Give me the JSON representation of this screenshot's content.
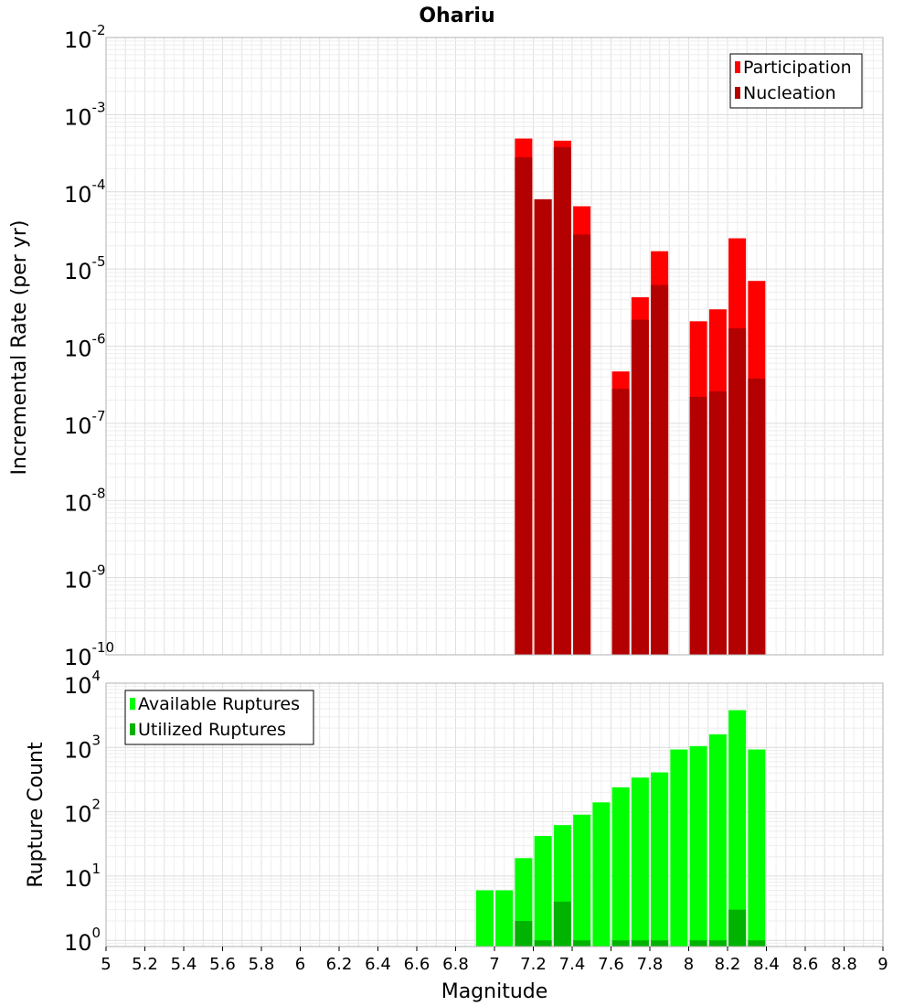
{
  "title": "Ohariu",
  "chart_data": [
    {
      "type": "bar",
      "y_scale": "log",
      "ylabel": "Incremental Rate (per yr)",
      "ylim": [
        1e-10,
        0.01
      ],
      "xlim": [
        5,
        9
      ],
      "grid": true,
      "legend_position": "top-right",
      "series": [
        {
          "name": "Participation",
          "color": "#ff0000",
          "x": [
            7.15,
            7.25,
            7.35,
            7.45,
            7.65,
            7.75,
            7.85,
            8.05,
            8.15,
            8.25,
            8.35
          ],
          "values": [
            0.00049,
            8e-05,
            0.00046,
            6.5e-05,
            4.7e-07,
            4.3e-06,
            1.7e-05,
            2.1e-06,
            3e-06,
            2.5e-05,
            7e-06
          ]
        },
        {
          "name": "Nucleation",
          "color": "#b30000",
          "x": [
            7.15,
            7.25,
            7.35,
            7.45,
            7.65,
            7.75,
            7.85,
            8.05,
            8.15,
            8.25,
            8.35
          ],
          "values": [
            0.00028,
            8e-05,
            0.00038,
            2.8e-05,
            2.8e-07,
            2.2e-06,
            6.2e-06,
            2.2e-07,
            2.6e-07,
            1.7e-06,
            3.8e-07
          ]
        }
      ]
    },
    {
      "type": "bar",
      "y_scale": "log",
      "ylabel": "Rupture Count",
      "xlabel": "Magnitude",
      "ylim": [
        0.8,
        10000
      ],
      "xlim": [
        5,
        9
      ],
      "grid": true,
      "legend_position": "top-left",
      "series": [
        {
          "name": "Available Ruptures",
          "color": "#00ff00",
          "x": [
            6.95,
            7.05,
            7.15,
            7.25,
            7.35,
            7.45,
            7.55,
            7.65,
            7.75,
            7.85,
            7.95,
            8.05,
            8.15,
            8.25,
            8.35
          ],
          "values": [
            6,
            6,
            19,
            42,
            62,
            90,
            140,
            240,
            340,
            410,
            930,
            1050,
            1600,
            3800,
            930
          ]
        },
        {
          "name": "Utilized Ruptures",
          "color": "#00b300",
          "x": [
            7.15,
            7.25,
            7.35,
            7.45,
            7.65,
            7.75,
            7.85,
            8.05,
            8.15,
            8.25,
            8.35
          ],
          "values": [
            2,
            1,
            4,
            1,
            1,
            1,
            1,
            1,
            1,
            3,
            1
          ]
        }
      ]
    }
  ],
  "x_ticks": [
    "5",
    "5.2",
    "5.4",
    "5.6",
    "5.8",
    "6",
    "6.2",
    "6.4",
    "6.6",
    "6.8",
    "7",
    "7.2",
    "7.4",
    "7.6",
    "7.8",
    "8",
    "8.2",
    "8.4",
    "8.6",
    "8.8",
    "9"
  ],
  "top_y_ticks": [
    {
      "base": "10",
      "exp": "-2"
    },
    {
      "base": "10",
      "exp": "-3"
    },
    {
      "base": "10",
      "exp": "-4"
    },
    {
      "base": "10",
      "exp": "-5"
    },
    {
      "base": "10",
      "exp": "-6"
    },
    {
      "base": "10",
      "exp": "-7"
    },
    {
      "base": "10",
      "exp": "-8"
    },
    {
      "base": "10",
      "exp": "-9"
    },
    {
      "base": "10",
      "exp": "-10"
    }
  ],
  "bottom_y_ticks": [
    {
      "base": "10",
      "exp": "4"
    },
    {
      "base": "10",
      "exp": "3"
    },
    {
      "base": "10",
      "exp": "2"
    },
    {
      "base": "10",
      "exp": "1"
    },
    {
      "base": "10",
      "exp": "0"
    }
  ]
}
